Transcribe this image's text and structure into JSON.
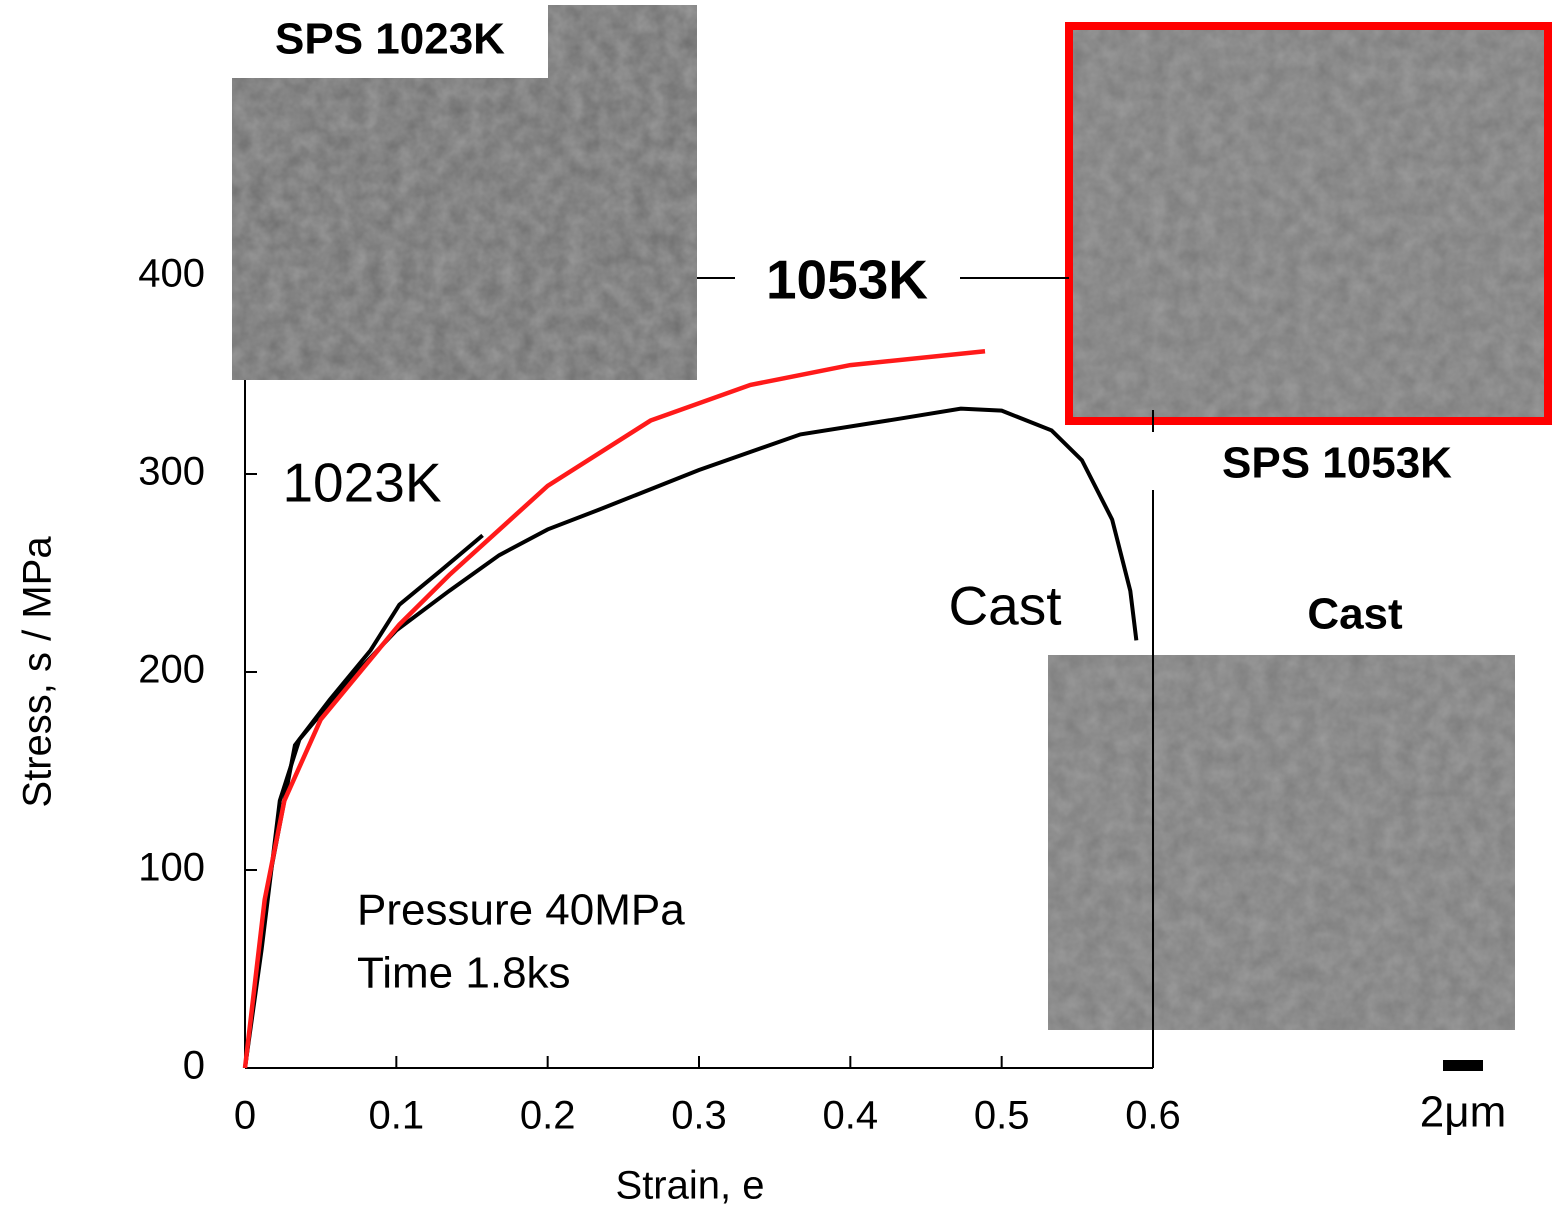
{
  "chart_data": {
    "type": "line",
    "xlabel": "Strain, e",
    "ylabel": "Stress, s / MPa",
    "xlim": [
      0,
      0.6
    ],
    "xticks": [
      0,
      0.1,
      0.2,
      0.3,
      0.4,
      0.5,
      0.6
    ],
    "ylim": [
      0,
      400
    ],
    "yticks": [
      0,
      100,
      200,
      300,
      400
    ],
    "annotations": [
      "SPS 1023K",
      "SPS 1053K",
      "Cast",
      "2μm",
      "Pressure  40MPa",
      "Time 1.8ks"
    ],
    "series": [
      {
        "name": "Cast",
        "color": "#000000",
        "x": [
          0,
          0.011,
          0.023,
          0.036,
          0.069,
          0.1,
          0.135,
          0.168,
          0.2,
          0.234,
          0.3,
          0.367,
          0.433,
          0.473,
          0.5,
          0.533,
          0.553,
          0.573,
          0.585,
          0.589
        ],
        "values": [
          0,
          60,
          135,
          166,
          196,
          221,
          241,
          259,
          272,
          282,
          302,
          320,
          328,
          333,
          332,
          322,
          307,
          277,
          241,
          216
        ]
      },
      {
        "name": "1023K",
        "color": "#000000",
        "x": [
          0,
          0.016,
          0.033,
          0.056,
          0.083,
          0.102,
          0.129,
          0.157
        ],
        "values": [
          0,
          95,
          163,
          186,
          211,
          234,
          251,
          269
        ]
      },
      {
        "name": "1053K",
        "color": "#ff1a1a",
        "x": [
          0,
          0.013,
          0.026,
          0.05,
          0.102,
          0.135,
          0.2,
          0.268,
          0.334,
          0.4,
          0.489
        ],
        "values": [
          0,
          85,
          135,
          176,
          224,
          249,
          294,
          327,
          345,
          355,
          362
        ]
      }
    ]
  }
}
